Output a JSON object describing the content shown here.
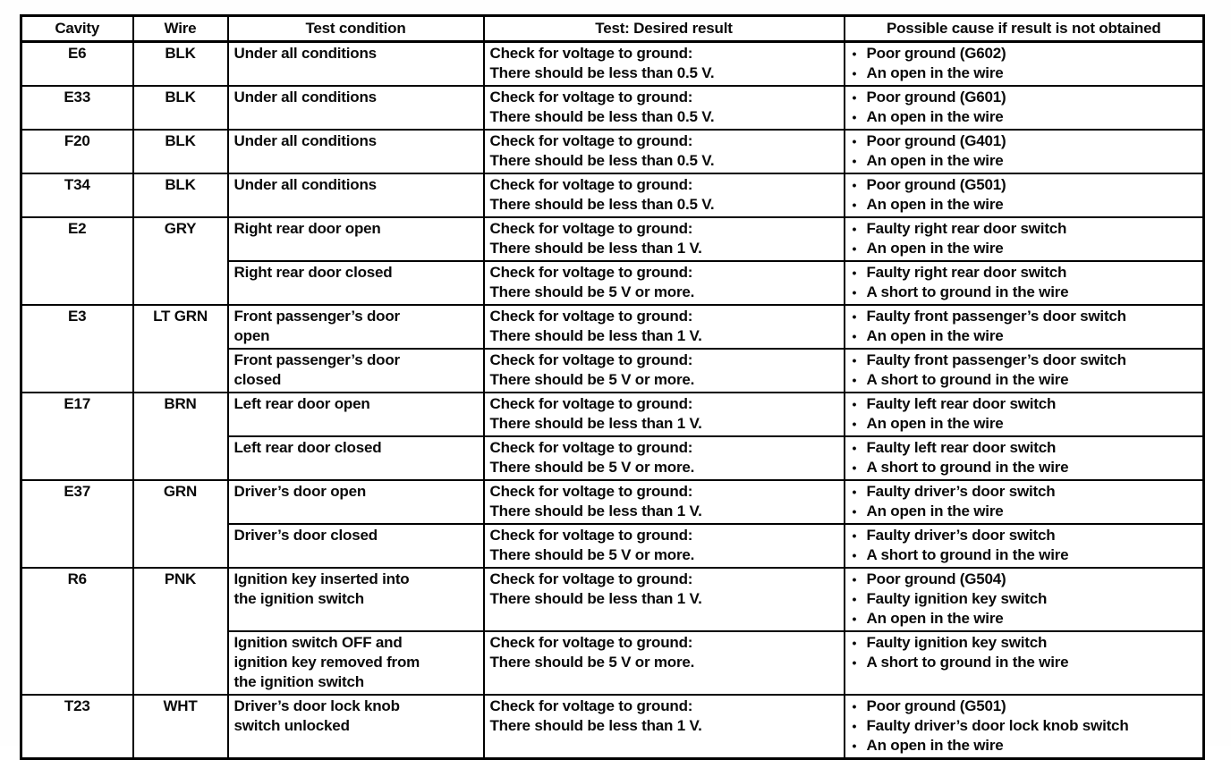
{
  "table": {
    "headers": [
      "Cavity",
      "Wire",
      "Test condition",
      "Test: Desired result",
      "Possible cause if result is not obtained"
    ],
    "bullet_char": "•",
    "rows": [
      {
        "cavity": "E6",
        "wire": "BLK",
        "tests": [
          {
            "condition_lines": [
              "Under all conditions"
            ],
            "result_lines": [
              "Check for voltage to ground:",
              "There should be less than 0.5 V."
            ],
            "causes": [
              "Poor ground (G602)",
              "An open in the wire"
            ]
          }
        ]
      },
      {
        "cavity": "E33",
        "wire": "BLK",
        "tests": [
          {
            "condition_lines": [
              "Under all conditions"
            ],
            "result_lines": [
              "Check for voltage to ground:",
              "There should be less than 0.5 V."
            ],
            "causes": [
              "Poor ground (G601)",
              "An open in the wire"
            ]
          }
        ]
      },
      {
        "cavity": "F20",
        "wire": "BLK",
        "tests": [
          {
            "condition_lines": [
              "Under all conditions"
            ],
            "result_lines": [
              "Check for voltage to ground:",
              "There should be less than 0.5 V."
            ],
            "causes": [
              "Poor ground (G401)",
              "An open in the wire"
            ]
          }
        ]
      },
      {
        "cavity": "T34",
        "wire": "BLK",
        "tests": [
          {
            "condition_lines": [
              "Under all conditions"
            ],
            "result_lines": [
              "Check for voltage to ground:",
              "There should be less than 0.5 V."
            ],
            "causes": [
              "Poor ground (G501)",
              "An open in the wire"
            ]
          }
        ]
      },
      {
        "cavity": "E2",
        "wire": "GRY",
        "tests": [
          {
            "condition_lines": [
              "Right rear door open"
            ],
            "result_lines": [
              "Check for voltage to ground:",
              "There should be less than 1 V."
            ],
            "causes": [
              "Faulty right rear door switch",
              "An open in the wire"
            ]
          },
          {
            "condition_lines": [
              "Right rear door closed"
            ],
            "result_lines": [
              "Check for voltage to ground:",
              "There should be 5 V or more."
            ],
            "causes": [
              "Faulty right rear door switch",
              "A short to ground in the wire"
            ]
          }
        ]
      },
      {
        "cavity": "E3",
        "wire": "LT GRN",
        "tests": [
          {
            "condition_lines": [
              "Front passenger’s door",
              "open"
            ],
            "result_lines": [
              "Check for voltage to ground:",
              "There should be less than 1 V."
            ],
            "causes": [
              "Faulty front passenger’s door switch",
              "An open in the wire"
            ]
          },
          {
            "condition_lines": [
              "Front passenger’s door",
              "closed"
            ],
            "result_lines": [
              "Check for voltage to ground:",
              "There should be 5 V or more."
            ],
            "causes": [
              "Faulty front passenger’s door switch",
              "A short to ground in the wire"
            ]
          }
        ]
      },
      {
        "cavity": "E17",
        "wire": "BRN",
        "tests": [
          {
            "condition_lines": [
              "Left rear door open"
            ],
            "result_lines": [
              "Check for voltage to ground:",
              "There should be less than 1 V."
            ],
            "causes": [
              "Faulty left rear door switch",
              "An open in the wire"
            ]
          },
          {
            "condition_lines": [
              "Left rear door closed"
            ],
            "result_lines": [
              "Check for voltage to ground:",
              "There should be 5 V or more."
            ],
            "causes": [
              "Faulty left rear door switch",
              "A short to ground in the wire"
            ]
          }
        ]
      },
      {
        "cavity": "E37",
        "wire": "GRN",
        "tests": [
          {
            "condition_lines": [
              "Driver’s door open"
            ],
            "result_lines": [
              "Check for voltage to ground:",
              "There should be less than 1 V."
            ],
            "causes": [
              "Faulty driver’s door switch",
              "An open in the wire"
            ]
          },
          {
            "condition_lines": [
              "Driver’s door closed"
            ],
            "result_lines": [
              "Check for voltage to ground:",
              "There should be 5 V or more."
            ],
            "causes": [
              "Faulty driver’s door switch",
              "A short to ground in the wire"
            ]
          }
        ]
      },
      {
        "cavity": "R6",
        "wire": "PNK",
        "tests": [
          {
            "condition_lines": [
              "Ignition key inserted into",
              "the ignition switch"
            ],
            "result_lines": [
              "Check for voltage to ground:",
              "There should be less than 1 V."
            ],
            "causes": [
              "Poor ground (G504)",
              "Faulty ignition key switch",
              "An open in the wire"
            ]
          },
          {
            "condition_lines": [
              "Ignition switch OFF and",
              "ignition key removed from",
              "the ignition switch"
            ],
            "result_lines": [
              "Check for voltage to ground:",
              "There should be 5 V or more."
            ],
            "causes": [
              "Faulty ignition key switch",
              "A short to ground in the wire"
            ]
          }
        ]
      },
      {
        "cavity": "T23",
        "wire": "WHT",
        "tests": [
          {
            "condition_lines": [
              "Driver’s door lock knob",
              "switch unlocked"
            ],
            "result_lines": [
              "Check for voltage to ground:",
              "There should be less than 1 V."
            ],
            "causes": [
              "Poor ground (G501)",
              "Faulty driver’s door lock knob switch",
              "An open in the wire"
            ]
          }
        ]
      }
    ]
  }
}
